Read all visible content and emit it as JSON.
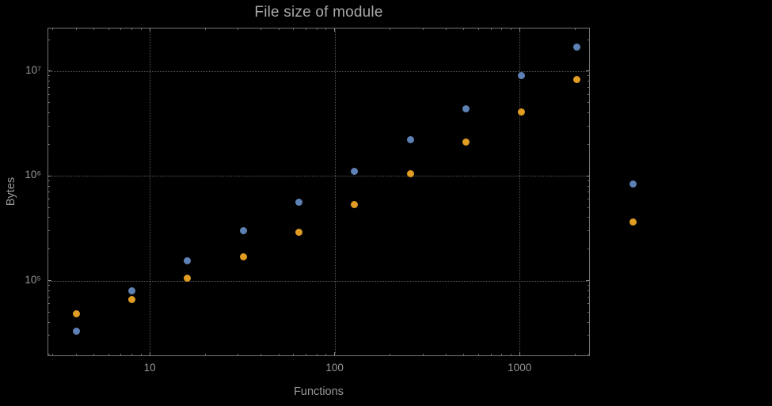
{
  "title": "File size of module",
  "axes": {
    "x": {
      "label": "Functions",
      "tick_labels": [
        "10",
        "100",
        "1000"
      ],
      "tick_values": [
        10,
        100,
        1000
      ]
    },
    "y": {
      "label": "Bytes",
      "tick_labels": [
        "10⁵",
        "10⁶",
        "10⁷"
      ],
      "tick_values": [
        100000,
        1000000,
        10000000
      ]
    }
  },
  "chart_data": {
    "type": "scatter",
    "title": "File size of module",
    "xlabel": "Functions",
    "ylabel": "Bytes",
    "xscale": "log",
    "yscale": "log",
    "grid": true,
    "legend": false,
    "background": "#000000",
    "xlim": [
      2.8,
      2400
    ],
    "ylim": [
      19000,
      26000000
    ],
    "x": [
      4,
      8,
      16,
      32,
      64,
      128,
      256,
      512,
      1024,
      2048,
      4096
    ],
    "series": [
      {
        "name": "series-1",
        "color": "#5e81b5",
        "values": [
          33000,
          80000,
          155000,
          300000,
          560000,
          1100000,
          2200000,
          4400000,
          9000000,
          17000000,
          830000
        ]
      },
      {
        "name": "series-2",
        "color": "#e19c24",
        "values": [
          48000,
          66000,
          105000,
          170000,
          290000,
          530000,
          1050000,
          2100000,
          4100000,
          8300000,
          360000
        ]
      }
    ]
  }
}
